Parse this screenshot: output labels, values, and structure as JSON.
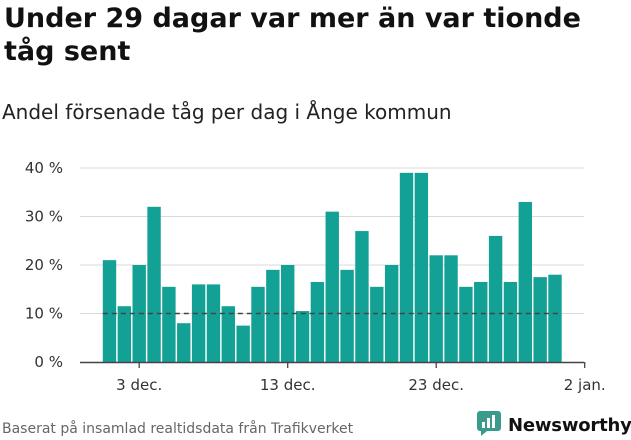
{
  "header": {
    "title": "Under 29 dagar var mer än var tionde tåg sent",
    "subtitle": "Andel försenade tåg per dag i Ånge kommun"
  },
  "footer": {
    "source": "Baserat på insamlad realtidsdata från Trafikverket"
  },
  "brand": {
    "name": "Newsworthy",
    "icon": "newsworthy-logo-icon",
    "color": "#3a9a8c"
  },
  "colors": {
    "bar": "#14a195",
    "reference_line": "#444444",
    "axis": "#444444",
    "grid": "#d9d9d9"
  },
  "chart_data": {
    "type": "bar",
    "title": "Andel försenade tåg per dag i Ånge kommun",
    "xlabel": "",
    "ylabel": "",
    "categories": [
      "2025-12-01",
      "2025-12-02",
      "2025-12-03",
      "2025-12-04",
      "2025-12-05",
      "2025-12-06",
      "2025-12-07",
      "2025-12-08",
      "2025-12-09",
      "2025-12-10",
      "2025-12-11",
      "2025-12-12",
      "2025-12-13",
      "2025-12-14",
      "2025-12-15",
      "2025-12-16",
      "2025-12-17",
      "2025-12-18",
      "2025-12-19",
      "2025-12-20",
      "2025-12-21",
      "2025-12-22",
      "2025-12-23",
      "2025-12-24",
      "2025-12-25",
      "2025-12-26",
      "2025-12-27",
      "2025-12-28",
      "2025-12-29",
      "2025-12-30",
      "2025-12-31"
    ],
    "values": [
      21,
      11.5,
      20,
      32,
      15.5,
      8,
      16,
      16,
      11.5,
      7.5,
      15.5,
      19,
      20,
      10.5,
      16.5,
      31,
      19,
      27,
      15.5,
      20,
      39,
      39,
      22,
      22,
      15.5,
      16.5,
      26,
      16.5,
      33,
      17.5,
      18
    ],
    "ylim": [
      0,
      40
    ],
    "yticks": [
      0,
      10,
      20,
      30,
      40
    ],
    "ytick_labels": [
      "0 %",
      "10 %",
      "20 %",
      "30 %",
      "40 %"
    ],
    "xticks": [
      {
        "index": 2,
        "label": "3 dec."
      },
      {
        "index": 12,
        "label": "13 dec."
      },
      {
        "index": 22,
        "label": "23 dec."
      },
      {
        "index": 32,
        "label": "2 jan."
      }
    ],
    "reference_line": 10,
    "grid": true,
    "legend": "none"
  }
}
